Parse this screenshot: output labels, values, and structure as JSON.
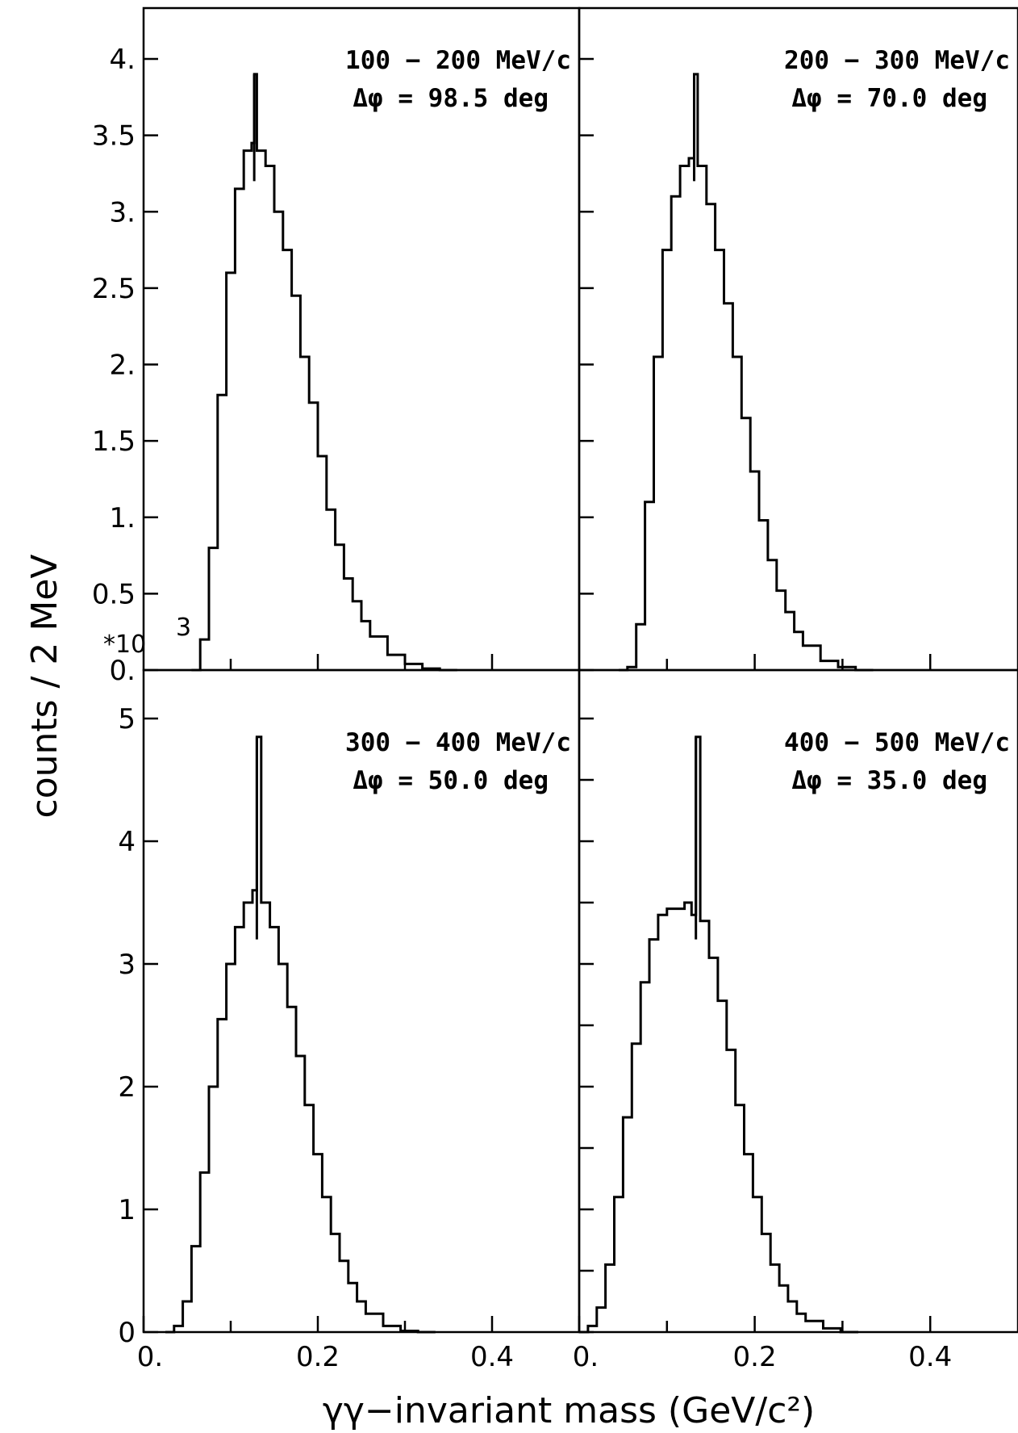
{
  "figure": {
    "xlabel": "γγ−invariant mass (GeV/c²)",
    "ylabel": "counts / 2 MeV",
    "multiplier_exponent": "3",
    "multiplier_prefix": "*10",
    "color": "#000000"
  },
  "chart_data": [
    {
      "type": "line",
      "panel": "top-left",
      "annotation_line1": "100 − 200 MeV/c",
      "annotation_line2": "Δφ = 98.5 deg",
      "xlim": [
        0,
        0.5
      ],
      "ylim": [
        0,
        4.05
      ],
      "x_ticks": [],
      "y_tick_labels": [
        "0.",
        "0.5",
        "1.",
        "1.5",
        "2.",
        "2.5",
        "3.",
        "3.5",
        "4."
      ],
      "y_ticks": [
        0,
        0.5,
        1,
        1.5,
        2,
        2.5,
        3,
        3.5,
        4
      ],
      "peak_x": 0.127,
      "peak_y": 3.9,
      "x": [
        0.055,
        0.065,
        0.075,
        0.085,
        0.095,
        0.105,
        0.115,
        0.124,
        0.127,
        0.13,
        0.14,
        0.15,
        0.16,
        0.17,
        0.18,
        0.19,
        0.2,
        0.21,
        0.22,
        0.23,
        0.24,
        0.25,
        0.26,
        0.28,
        0.3,
        0.32,
        0.34,
        0.36
      ],
      "y": [
        0.0,
        0.2,
        0.8,
        1.8,
        2.6,
        3.15,
        3.4,
        3.45,
        3.9,
        3.4,
        3.3,
        3.0,
        2.75,
        2.45,
        2.05,
        1.75,
        1.4,
        1.05,
        0.82,
        0.6,
        0.45,
        0.32,
        0.22,
        0.1,
        0.04,
        0.01,
        0.0,
        0.0
      ]
    },
    {
      "type": "line",
      "panel": "top-right",
      "annotation_line1": "200 − 300 MeV/c",
      "annotation_line2": "Δφ = 70.0 deg",
      "xlim": [
        0,
        0.5
      ],
      "ylim": [
        0,
        4.05
      ],
      "x_ticks": [],
      "y_tick_labels": [],
      "y_ticks": [
        0,
        0.5,
        1,
        1.5,
        2,
        2.5,
        3,
        3.5,
        4
      ],
      "peak_x": 0.131,
      "peak_y": 3.9,
      "x": [
        0.045,
        0.055,
        0.065,
        0.075,
        0.085,
        0.095,
        0.105,
        0.115,
        0.125,
        0.131,
        0.135,
        0.145,
        0.155,
        0.165,
        0.175,
        0.185,
        0.195,
        0.205,
        0.215,
        0.225,
        0.235,
        0.245,
        0.255,
        0.275,
        0.295,
        0.315,
        0.335
      ],
      "y": [
        0.0,
        0.02,
        0.3,
        1.1,
        2.05,
        2.75,
        3.1,
        3.3,
        3.35,
        3.9,
        3.3,
        3.05,
        2.75,
        2.4,
        2.05,
        1.65,
        1.3,
        0.98,
        0.72,
        0.52,
        0.38,
        0.25,
        0.16,
        0.06,
        0.02,
        0.0,
        0.0
      ]
    },
    {
      "type": "line",
      "panel": "bottom-left",
      "annotation_line1": "300 − 400 MeV/c",
      "annotation_line2": "Δφ = 50.0 deg",
      "xlim": [
        0,
        0.5
      ],
      "ylim": [
        0,
        5.35
      ],
      "x_ticks": [
        0,
        0.1,
        0.2,
        0.3,
        0.4
      ],
      "x_tick_labels": [
        "0.",
        "",
        "0.2",
        "",
        "0.4"
      ],
      "y_tick_labels": [
        "0",
        "1",
        "2",
        "3",
        "4",
        "5"
      ],
      "y_ticks": [
        0,
        1,
        2,
        3,
        4,
        5
      ],
      "peak_x": 0.13,
      "peak_y": 4.85,
      "x": [
        0.025,
        0.035,
        0.045,
        0.055,
        0.065,
        0.075,
        0.085,
        0.095,
        0.105,
        0.115,
        0.125,
        0.13,
        0.135,
        0.145,
        0.155,
        0.165,
        0.175,
        0.185,
        0.195,
        0.205,
        0.215,
        0.225,
        0.235,
        0.245,
        0.255,
        0.275,
        0.295,
        0.315,
        0.335
      ],
      "y": [
        0.0,
        0.05,
        0.25,
        0.7,
        1.3,
        2.0,
        2.55,
        3.0,
        3.3,
        3.5,
        3.6,
        4.85,
        3.5,
        3.3,
        3.0,
        2.65,
        2.25,
        1.85,
        1.45,
        1.1,
        0.8,
        0.58,
        0.4,
        0.25,
        0.15,
        0.05,
        0.01,
        0.0,
        0.0
      ]
    },
    {
      "type": "line",
      "panel": "bottom-right",
      "annotation_line1": "400 − 500 MeV/c",
      "annotation_line2": "Δφ = 35.0 deg",
      "xlim": [
        0,
        0.5
      ],
      "ylim": [
        0,
        5.35
      ],
      "x_ticks": [
        0,
        0.1,
        0.2,
        0.3,
        0.4
      ],
      "x_tick_labels": [
        "0.",
        "",
        "0.2",
        "",
        "0.4"
      ],
      "y_tick_labels": [],
      "y_ticks": [
        0,
        0.5,
        1,
        1.5,
        2,
        2.5,
        3,
        3.5,
        4,
        4.5,
        5
      ],
      "peak_x": 0.133,
      "peak_y": 4.85,
      "x": [
        0.0,
        0.01,
        0.02,
        0.03,
        0.04,
        0.05,
        0.06,
        0.07,
        0.08,
        0.09,
        0.1,
        0.11,
        0.12,
        0.128,
        0.133,
        0.138,
        0.148,
        0.158,
        0.168,
        0.178,
        0.188,
        0.198,
        0.208,
        0.218,
        0.228,
        0.238,
        0.248,
        0.258,
        0.278,
        0.298,
        0.318
      ],
      "y": [
        0.0,
        0.05,
        0.2,
        0.55,
        1.1,
        1.75,
        2.35,
        2.85,
        3.2,
        3.4,
        3.45,
        3.45,
        3.5,
        3.4,
        4.85,
        3.35,
        3.05,
        2.7,
        2.3,
        1.85,
        1.45,
        1.1,
        0.8,
        0.55,
        0.38,
        0.25,
        0.15,
        0.09,
        0.03,
        0.0,
        0.0
      ]
    }
  ]
}
